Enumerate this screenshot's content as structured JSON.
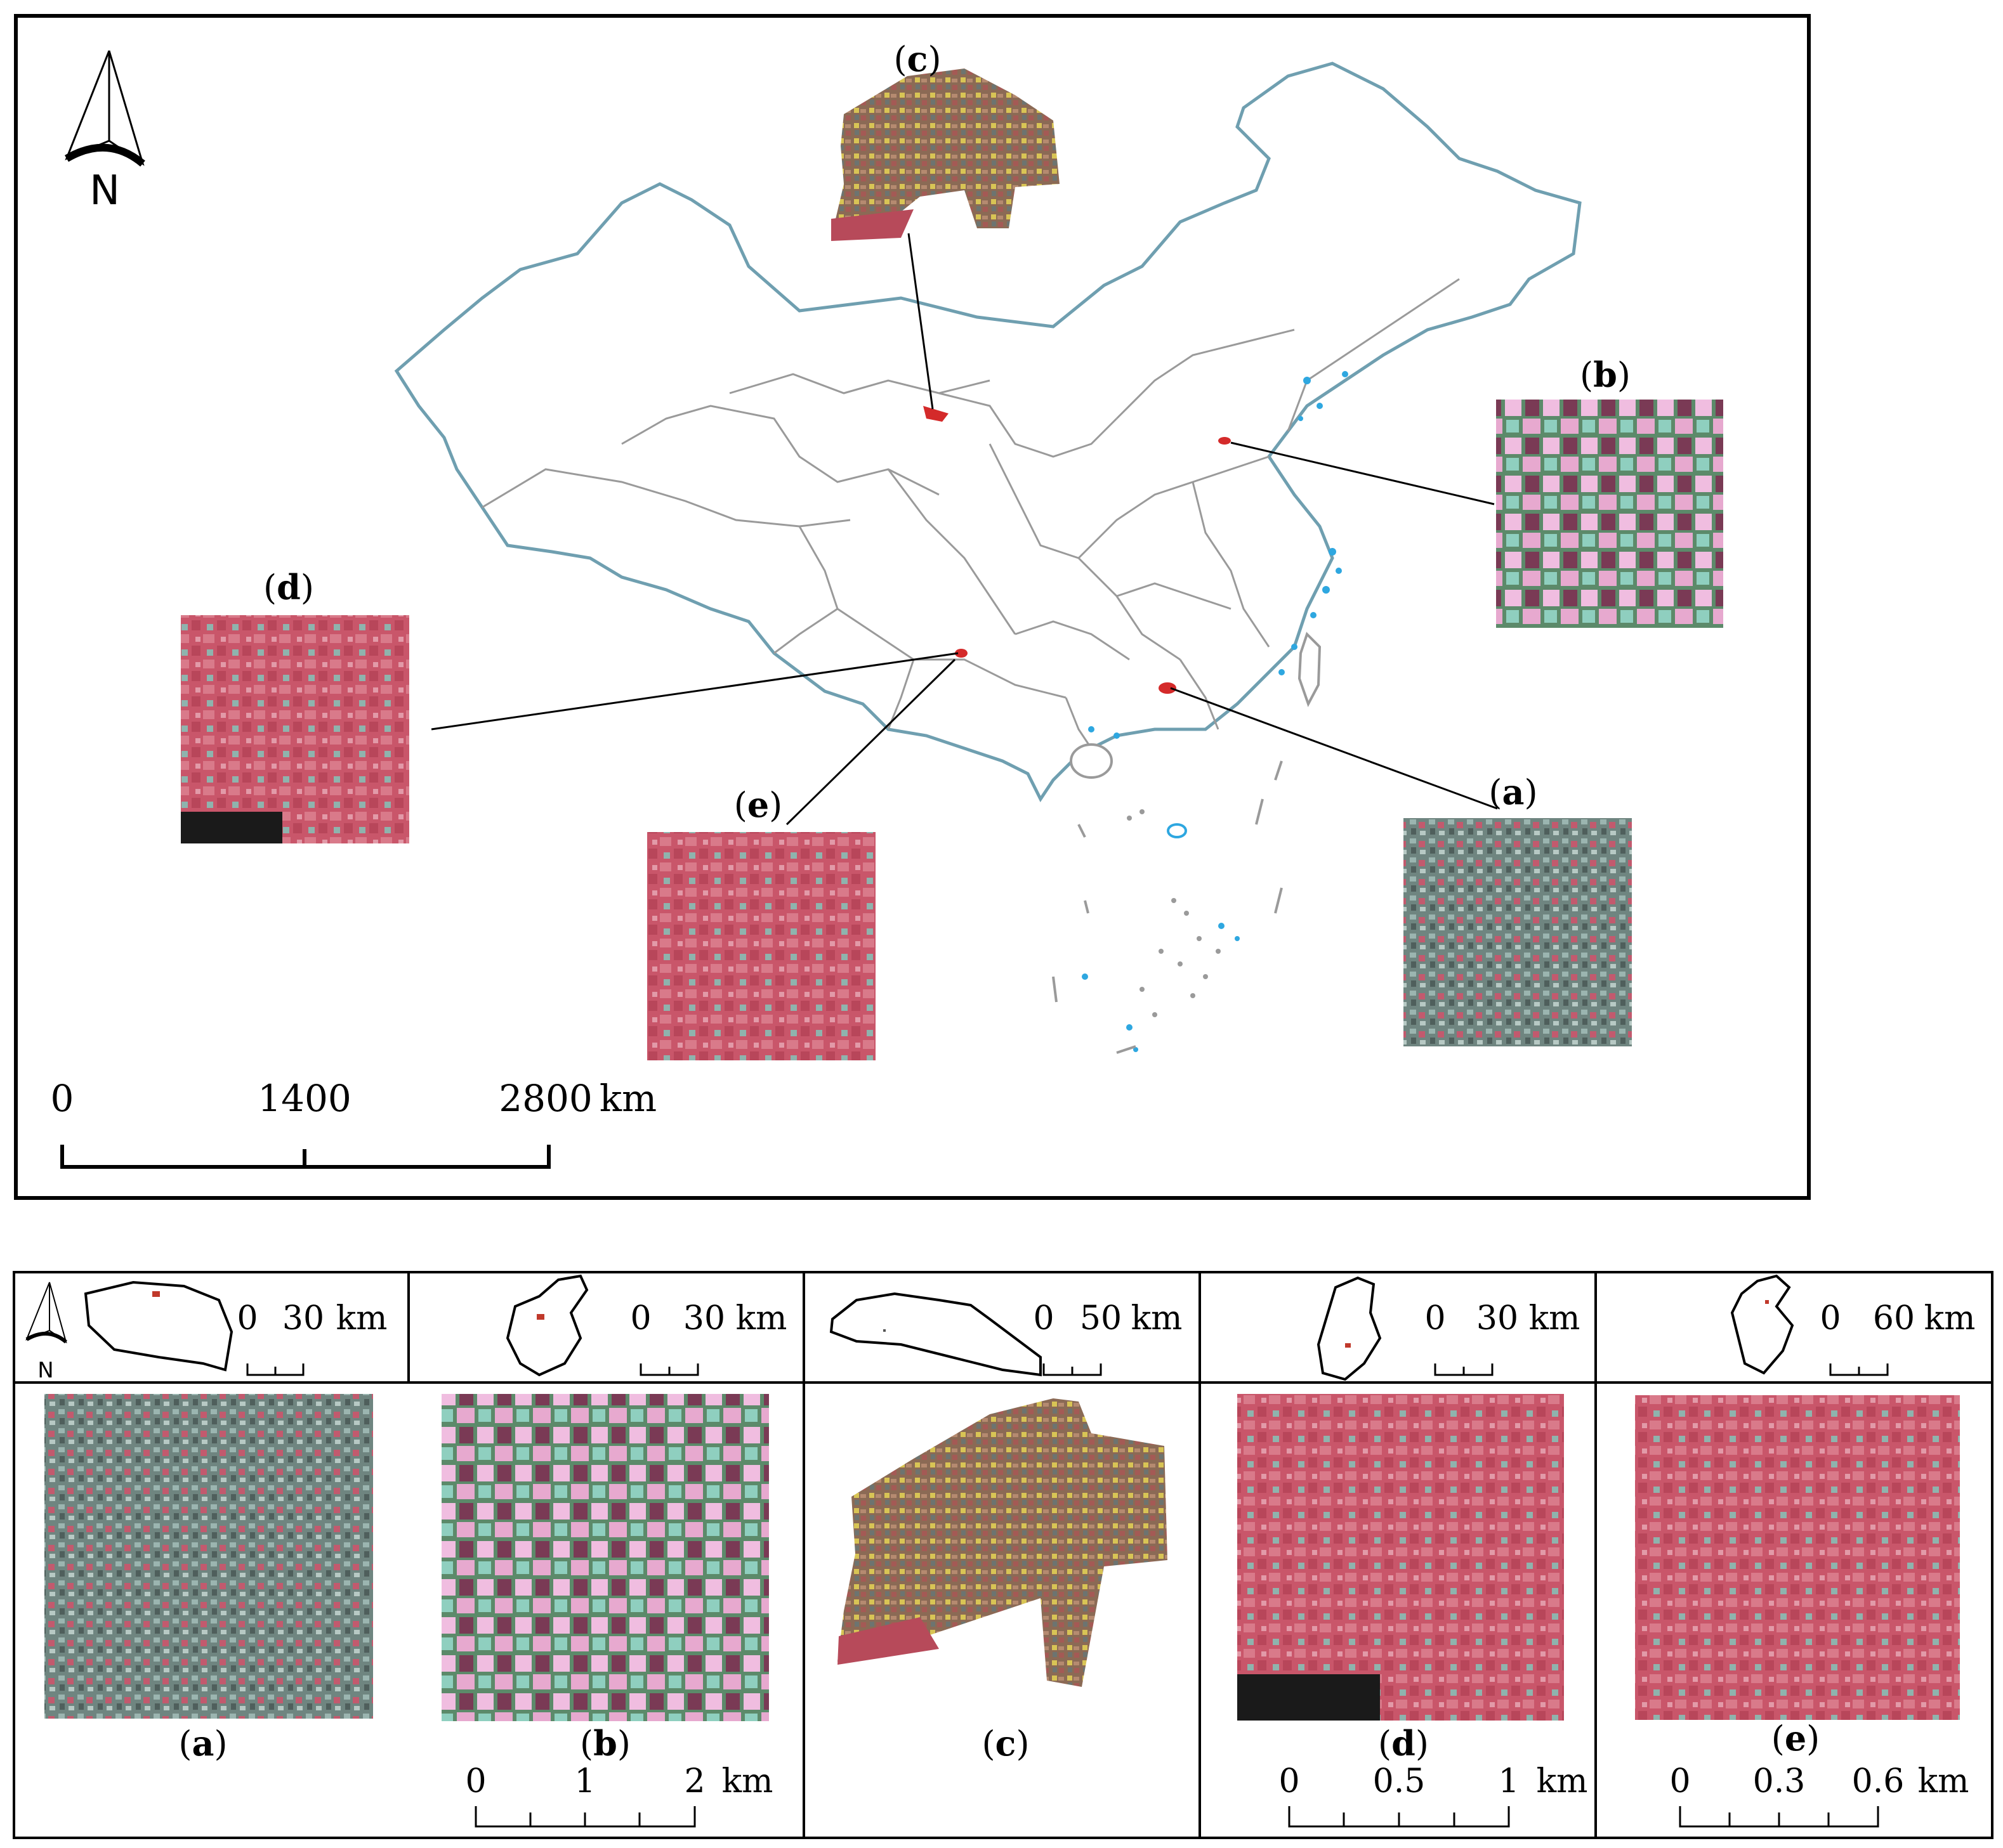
{
  "top_map": {
    "north_label": "N",
    "scale_bar": {
      "ticks": [
        "0",
        "1400",
        "2800"
      ],
      "unit": "km"
    },
    "callouts": [
      {
        "letter": "c",
        "open": "(",
        "close": ")"
      },
      {
        "letter": "b",
        "open": "(",
        "close": ")"
      },
      {
        "letter": "d",
        "open": "(",
        "close": ")"
      },
      {
        "letter": "e",
        "open": "(",
        "close": ")"
      },
      {
        "letter": "a",
        "open": "(",
        "close": ")"
      }
    ]
  },
  "panels": [
    {
      "letter": "a",
      "open": "(",
      "close": ")",
      "locator_scale": {
        "ticks": [
          "0",
          "30"
        ],
        "unit": "km"
      },
      "north_label": "N"
    },
    {
      "letter": "b",
      "open": "(",
      "close": ")",
      "locator_scale": {
        "ticks": [
          "0",
          "30"
        ],
        "unit": "km"
      },
      "image_scale": {
        "ticks": [
          "0",
          "1",
          "2"
        ],
        "unit": "km"
      }
    },
    {
      "letter": "c",
      "open": "(",
      "close": ")",
      "locator_scale": {
        "ticks": [
          "0",
          "50"
        ],
        "unit": "km"
      }
    },
    {
      "letter": "d",
      "open": "(",
      "close": ")",
      "locator_scale": {
        "ticks": [
          "0",
          "30"
        ],
        "unit": "km"
      },
      "image_scale": {
        "ticks": [
          "0",
          "0.5",
          "1"
        ],
        "unit": "km"
      }
    },
    {
      "letter": "e",
      "open": "(",
      "close": ")",
      "locator_scale": {
        "ticks": [
          "0",
          "60"
        ],
        "unit": "km"
      },
      "image_scale": {
        "ticks": [
          "0",
          "0.3",
          "0.6"
        ],
        "unit": "km"
      }
    }
  ],
  "colors": {
    "border": "#000000",
    "coast": "#6f9fb0",
    "province": "#9a9a9a",
    "island_blue": "#2ea7e0",
    "marker": "#d42a2a"
  }
}
